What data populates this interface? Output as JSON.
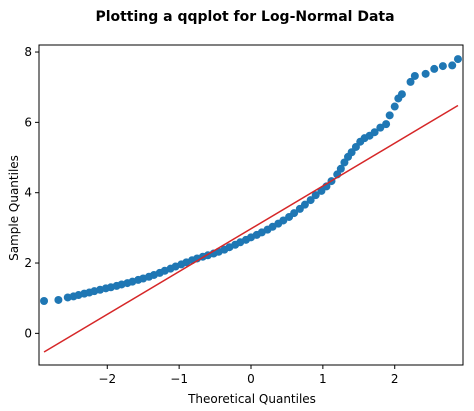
{
  "chart_data": {
    "type": "scatter",
    "title": "Plotting a qqplot for Log-Normal Data",
    "xlabel": "Theoretical Quantiles",
    "ylabel": "Sample Quantiles",
    "xlim": [
      -2.95,
      2.95
    ],
    "ylim": [
      -0.9,
      8.2
    ],
    "xticks": [
      -2,
      -1,
      0,
      1,
      2
    ],
    "xtick_labels": [
      "−2",
      "−1",
      "0",
      "1",
      "2"
    ],
    "yticks": [
      0,
      2,
      4,
      6,
      8
    ],
    "ytick_labels": [
      "0",
      "2",
      "4",
      "6",
      "8"
    ],
    "grid": false,
    "colors": {
      "points": "#1f77b4",
      "line": "#d62728"
    },
    "series": [
      {
        "kind": "scatter",
        "points": [
          [
            -2.88,
            0.92
          ],
          [
            -2.68,
            0.95
          ],
          [
            -2.55,
            1.02
          ],
          [
            -2.47,
            1.05
          ],
          [
            -2.4,
            1.09
          ],
          [
            -2.32,
            1.13
          ],
          [
            -2.25,
            1.16
          ],
          [
            -2.18,
            1.2
          ],
          [
            -2.1,
            1.24
          ],
          [
            -2.02,
            1.28
          ],
          [
            -1.95,
            1.31
          ],
          [
            -1.87,
            1.35
          ],
          [
            -1.8,
            1.39
          ],
          [
            -1.72,
            1.43
          ],
          [
            -1.65,
            1.47
          ],
          [
            -1.57,
            1.52
          ],
          [
            -1.5,
            1.56
          ],
          [
            -1.42,
            1.61
          ],
          [
            -1.35,
            1.66
          ],
          [
            -1.27,
            1.72
          ],
          [
            -1.2,
            1.78
          ],
          [
            -1.12,
            1.84
          ],
          [
            -1.05,
            1.9
          ],
          [
            -0.97,
            1.96
          ],
          [
            -0.9,
            2.02
          ],
          [
            -0.82,
            2.08
          ],
          [
            -0.75,
            2.13
          ],
          [
            -0.67,
            2.18
          ],
          [
            -0.6,
            2.22
          ],
          [
            -0.52,
            2.27
          ],
          [
            -0.45,
            2.32
          ],
          [
            -0.37,
            2.38
          ],
          [
            -0.3,
            2.45
          ],
          [
            -0.22,
            2.52
          ],
          [
            -0.15,
            2.59
          ],
          [
            -0.07,
            2.66
          ],
          [
            0.0,
            2.73
          ],
          [
            0.08,
            2.8
          ],
          [
            0.15,
            2.87
          ],
          [
            0.23,
            2.95
          ],
          [
            0.3,
            3.03
          ],
          [
            0.38,
            3.12
          ],
          [
            0.45,
            3.21
          ],
          [
            0.53,
            3.31
          ],
          [
            0.6,
            3.42
          ],
          [
            0.68,
            3.54
          ],
          [
            0.75,
            3.66
          ],
          [
            0.83,
            3.79
          ],
          [
            0.9,
            3.93
          ],
          [
            0.98,
            4.05
          ],
          [
            1.05,
            4.18
          ],
          [
            1.12,
            4.33
          ],
          [
            1.2,
            4.52
          ],
          [
            1.25,
            4.68
          ],
          [
            1.3,
            4.86
          ],
          [
            1.35,
            5.02
          ],
          [
            1.4,
            5.15
          ],
          [
            1.46,
            5.3
          ],
          [
            1.52,
            5.45
          ],
          [
            1.58,
            5.55
          ],
          [
            1.65,
            5.62
          ],
          [
            1.72,
            5.72
          ],
          [
            1.8,
            5.85
          ],
          [
            1.88,
            5.95
          ],
          [
            1.93,
            6.2
          ],
          [
            2.0,
            6.45
          ],
          [
            2.05,
            6.68
          ],
          [
            2.1,
            6.8
          ],
          [
            2.22,
            7.15
          ],
          [
            2.28,
            7.32
          ],
          [
            2.43,
            7.38
          ],
          [
            2.55,
            7.52
          ],
          [
            2.67,
            7.6
          ],
          [
            2.8,
            7.62
          ],
          [
            2.88,
            7.8
          ]
        ]
      },
      {
        "kind": "line",
        "points": [
          [
            -2.88,
            -0.53
          ],
          [
            2.88,
            6.48
          ]
        ]
      }
    ]
  }
}
